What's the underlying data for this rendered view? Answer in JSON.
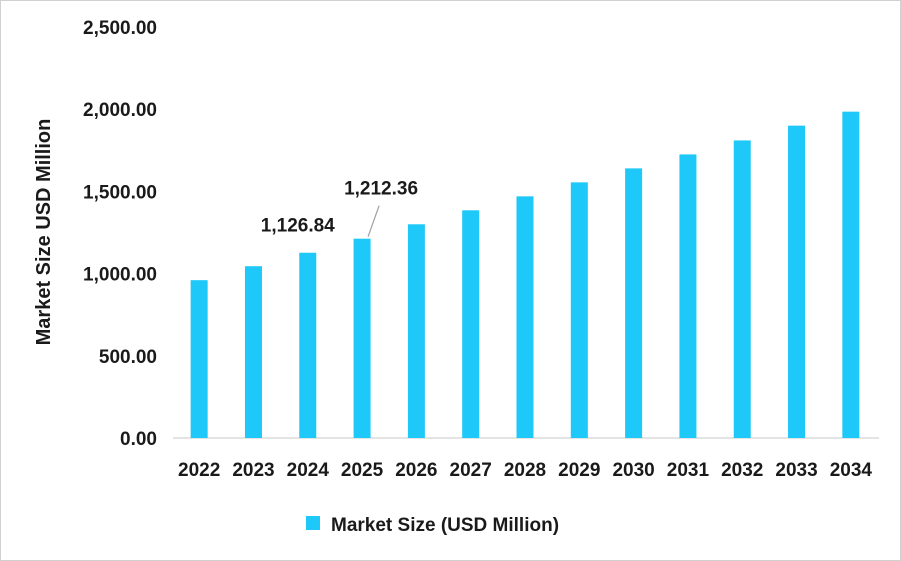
{
  "chart_data": {
    "type": "bar",
    "title": "",
    "xlabel": "",
    "ylabel": "Market Size USD Million",
    "ylim": [
      0,
      2500
    ],
    "yticks": [
      "0.00",
      "500.00",
      "1,000.00",
      "1,500.00",
      "2,000.00",
      "2,500.00"
    ],
    "categories": [
      "2022",
      "2023",
      "2024",
      "2025",
      "2026",
      "2027",
      "2028",
      "2029",
      "2030",
      "2031",
      "2032",
      "2033",
      "2034"
    ],
    "series": [
      {
        "name": "Market Size (USD Million)",
        "color": "#1ec8f8",
        "values": [
          960,
          1045,
          1126.84,
          1212.36,
          1300,
          1385,
          1470,
          1555,
          1640,
          1725,
          1810,
          1900,
          1985
        ]
      }
    ],
    "data_labels": [
      {
        "category": "2024",
        "text": "1,126.84"
      },
      {
        "category": "2025",
        "text": "1,212.36"
      }
    ],
    "grid": false,
    "legend_position": "bottom"
  }
}
